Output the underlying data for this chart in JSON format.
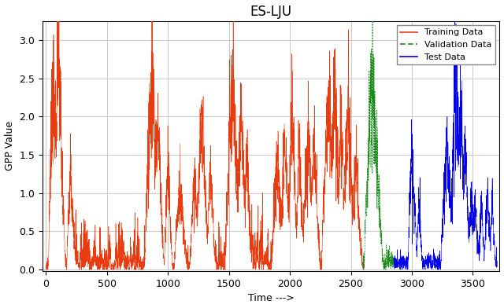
{
  "title": "ES-LJU",
  "xlabel": "Time --->",
  "ylabel": "GPP Value",
  "xlim": [
    -30,
    3720
  ],
  "ylim": [
    -0.02,
    3.25
  ],
  "yticks": [
    0.0,
    0.5,
    1.0,
    1.5,
    2.0,
    2.5,
    3.0
  ],
  "xticks": [
    0,
    500,
    1000,
    1500,
    2000,
    2500,
    3000,
    3500
  ],
  "train_color": "#e83c10",
  "val_color": "#1a8a1a",
  "test_color": "#0000e8",
  "train_end": 2600,
  "val_end": 2850,
  "test_end": 3700,
  "background_color": "#ffffff",
  "grid_color": "#c8c8c8"
}
